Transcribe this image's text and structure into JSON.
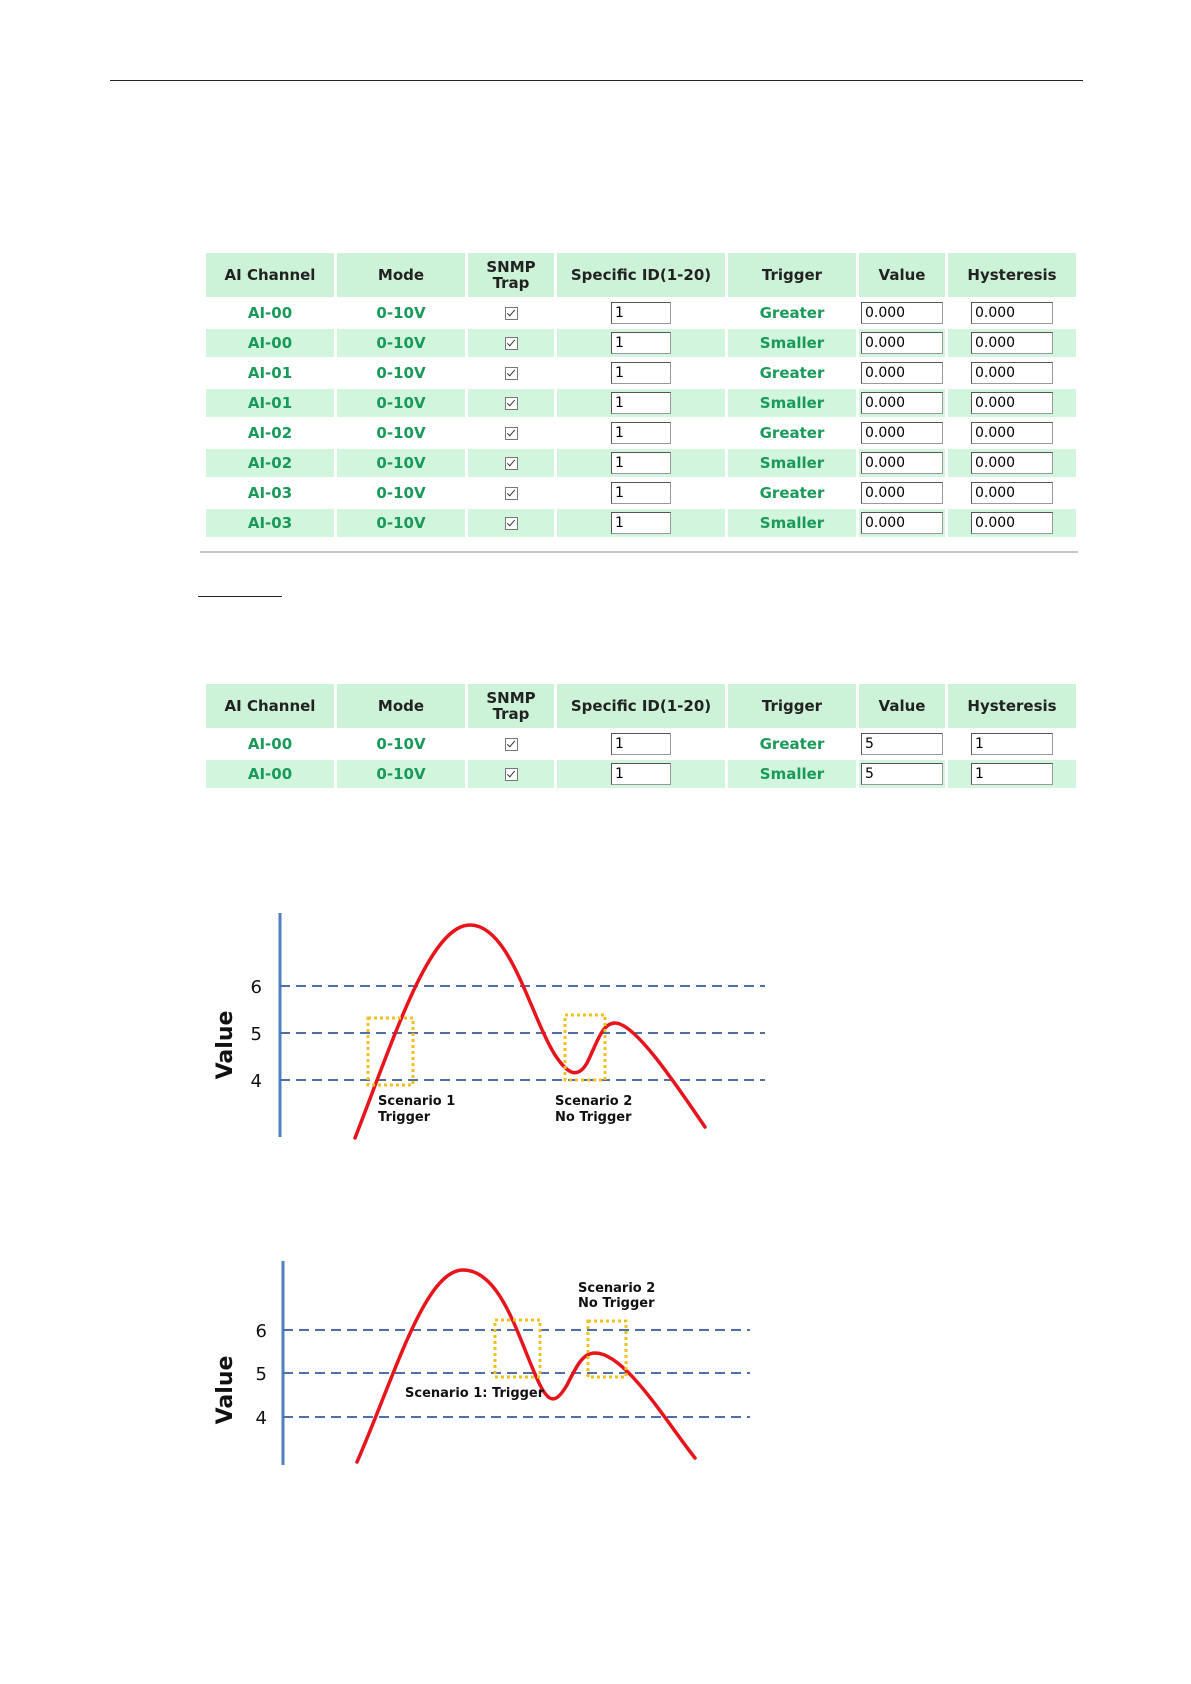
{
  "table1": {
    "headers": [
      "AI Channel",
      "Mode",
      "SNMP Trap",
      "Specific ID(1-20)",
      "Trigger",
      "Value",
      "Hysteresis"
    ],
    "rows": [
      {
        "channel": "AI-00",
        "mode": "0-10V",
        "snmp_trap": true,
        "specific_id": "1",
        "trigger": "Greater",
        "value": "0.000",
        "hysteresis": "0.000"
      },
      {
        "channel": "AI-00",
        "mode": "0-10V",
        "snmp_trap": true,
        "specific_id": "1",
        "trigger": "Smaller",
        "value": "0.000",
        "hysteresis": "0.000"
      },
      {
        "channel": "AI-01",
        "mode": "0-10V",
        "snmp_trap": true,
        "specific_id": "1",
        "trigger": "Greater",
        "value": "0.000",
        "hysteresis": "0.000"
      },
      {
        "channel": "AI-01",
        "mode": "0-10V",
        "snmp_trap": true,
        "specific_id": "1",
        "trigger": "Smaller",
        "value": "0.000",
        "hysteresis": "0.000"
      },
      {
        "channel": "AI-02",
        "mode": "0-10V",
        "snmp_trap": true,
        "specific_id": "1",
        "trigger": "Greater",
        "value": "0.000",
        "hysteresis": "0.000"
      },
      {
        "channel": "AI-02",
        "mode": "0-10V",
        "snmp_trap": true,
        "specific_id": "1",
        "trigger": "Smaller",
        "value": "0.000",
        "hysteresis": "0.000"
      },
      {
        "channel": "AI-03",
        "mode": "0-10V",
        "snmp_trap": true,
        "specific_id": "1",
        "trigger": "Greater",
        "value": "0.000",
        "hysteresis": "0.000"
      },
      {
        "channel": "AI-03",
        "mode": "0-10V",
        "snmp_trap": true,
        "specific_id": "1",
        "trigger": "Smaller",
        "value": "0.000",
        "hysteresis": "0.000"
      }
    ]
  },
  "table2": {
    "headers": [
      "AI Channel",
      "Mode",
      "SNMP Trap",
      "Specific ID(1-20)",
      "Trigger",
      "Value",
      "Hysteresis"
    ],
    "rows": [
      {
        "channel": "AI-00",
        "mode": "0-10V",
        "snmp_trap": true,
        "specific_id": "1",
        "trigger": "Greater",
        "value": "5",
        "hysteresis": "1"
      },
      {
        "channel": "AI-00",
        "mode": "0-10V",
        "snmp_trap": true,
        "specific_id": "1",
        "trigger": "Smaller",
        "value": "5",
        "hysteresis": "1"
      }
    ]
  },
  "colors": {
    "header_bg": "#ccf2d8",
    "row_alt_bg": "#d2f5dd",
    "cell_text": "#1a9a5a",
    "axis": "#4f81bd",
    "curve": "#e8141c",
    "box": "#f0c020"
  },
  "chart_data": [
    {
      "type": "line",
      "ylabel": "Value",
      "y_ticks": [
        "6",
        "5",
        "4"
      ],
      "reference_lines": [
        6,
        5,
        4
      ],
      "annotations": [
        {
          "lines": [
            "Scenario 1",
            "Trigger"
          ]
        },
        {
          "lines": [
            "Scenario 2",
            "No Trigger"
          ]
        }
      ]
    },
    {
      "type": "line",
      "ylabel": "Value",
      "y_ticks": [
        "6",
        "5",
        "4"
      ],
      "reference_lines": [
        6,
        5,
        4
      ],
      "annotations": [
        {
          "lines": [
            "Scenario 1: Trigger"
          ]
        },
        {
          "lines": [
            "Scenario 2",
            "No Trigger"
          ]
        }
      ]
    }
  ]
}
